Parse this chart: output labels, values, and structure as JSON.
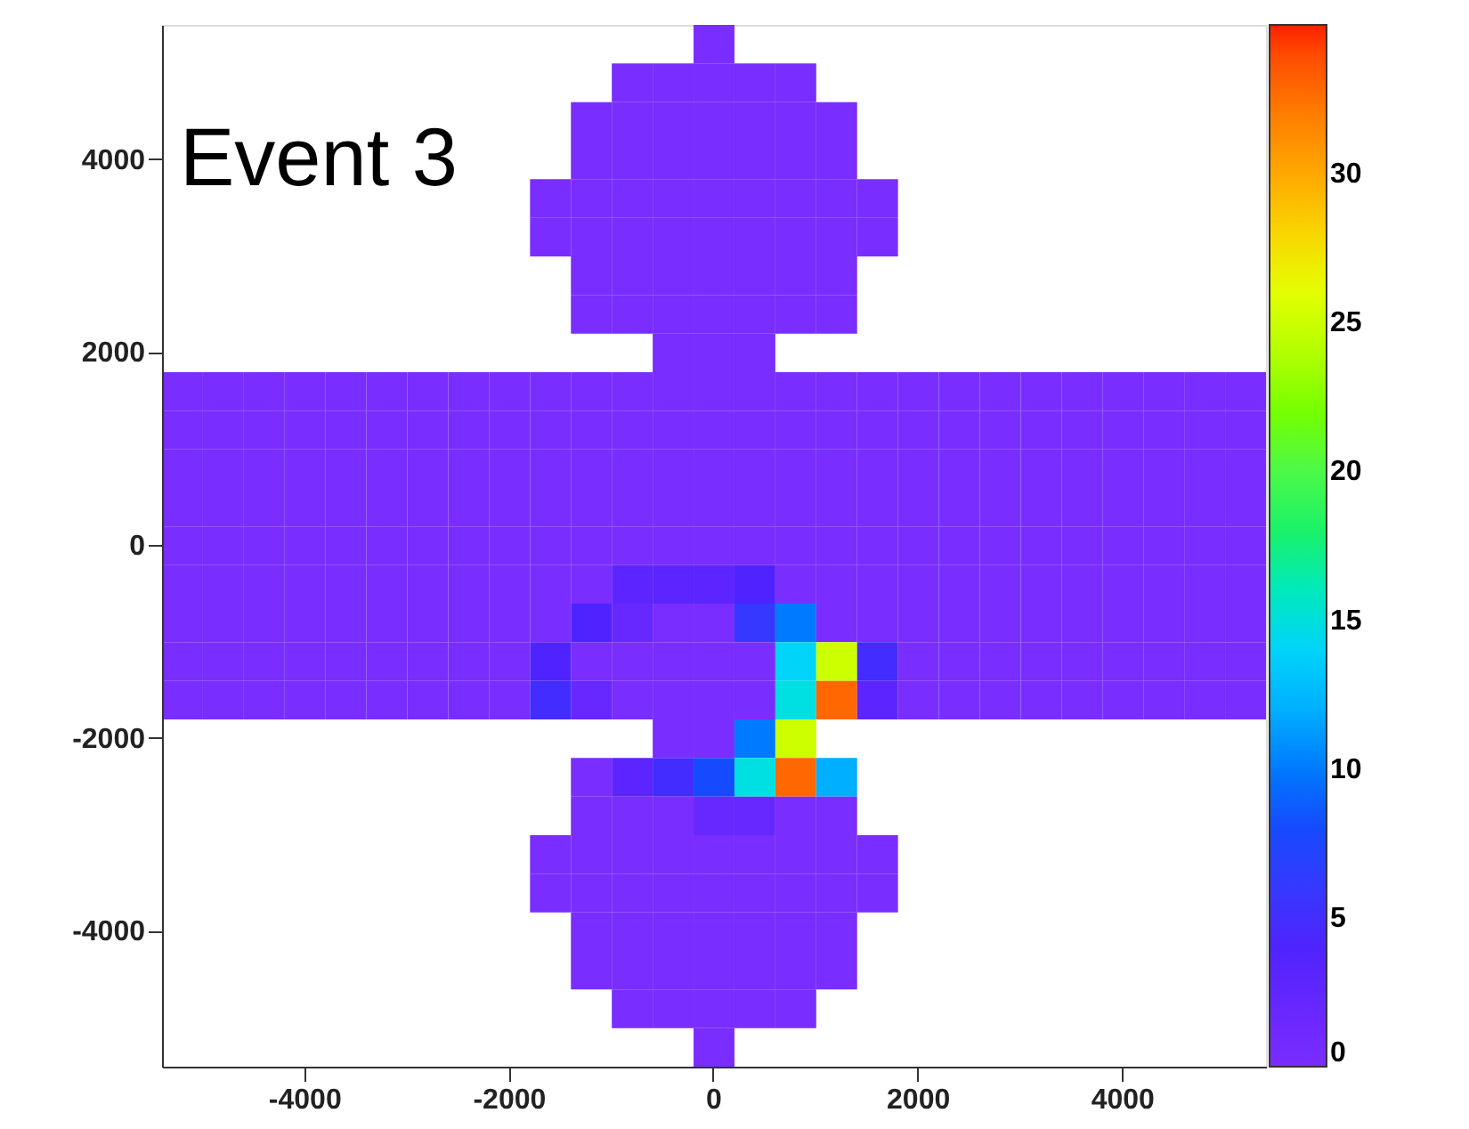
{
  "chart_data": {
    "type": "heatmap",
    "annotations": [
      "Event 3"
    ],
    "categories": [
      null,
      null,
      null,
      "-4000",
      null,
      null,
      null,
      null,
      "-2000",
      null,
      null,
      null,
      null,
      "0",
      null,
      null,
      null,
      null,
      "2000",
      null,
      null,
      null,
      null,
      "4000",
      null,
      null,
      null
    ],
    "y_categories": [
      null,
      null,
      null,
      "4000",
      null,
      null,
      null,
      null,
      "2000",
      null,
      null,
      null,
      null,
      "0",
      null,
      null,
      null,
      null,
      "-2000",
      null,
      null,
      null,
      null,
      "-4000",
      null,
      null,
      null
    ],
    "clim": [
      0,
      35
    ],
    "cticks": [
      0,
      5,
      10,
      15,
      20,
      25,
      30
    ],
    "grid": false,
    "cells": [
      [
        null,
        null,
        null,
        null,
        null,
        null,
        null,
        null,
        null,
        null,
        null,
        null,
        null,
        0,
        null,
        null,
        null,
        null,
        null,
        null,
        null,
        null,
        null,
        null,
        null,
        null,
        null
      ],
      [
        null,
        null,
        null,
        null,
        null,
        null,
        null,
        null,
        null,
        null,
        null,
        0,
        0,
        0,
        0,
        0,
        null,
        null,
        null,
        null,
        null,
        null,
        null,
        null,
        null,
        null,
        null
      ],
      [
        null,
        null,
        null,
        null,
        null,
        null,
        null,
        null,
        null,
        null,
        0,
        0,
        0,
        0,
        0,
        0,
        0,
        null,
        null,
        null,
        null,
        null,
        null,
        null,
        null,
        null,
        null
      ],
      [
        null,
        null,
        null,
        null,
        null,
        null,
        null,
        null,
        null,
        null,
        0,
        0,
        0,
        0,
        0,
        0,
        0,
        null,
        null,
        null,
        null,
        null,
        null,
        null,
        null,
        null,
        null
      ],
      [
        null,
        null,
        null,
        null,
        null,
        null,
        null,
        null,
        null,
        0,
        0,
        0,
        0,
        0,
        0,
        0,
        0,
        0,
        null,
        null,
        null,
        null,
        null,
        null,
        null,
        null,
        null
      ],
      [
        null,
        null,
        null,
        null,
        null,
        null,
        null,
        null,
        null,
        0,
        0,
        0,
        0,
        0,
        0,
        0,
        0,
        0,
        null,
        null,
        null,
        null,
        null,
        null,
        null,
        null,
        null
      ],
      [
        null,
        null,
        null,
        null,
        null,
        null,
        null,
        null,
        null,
        null,
        0,
        0,
        0,
        0,
        0,
        0,
        0,
        null,
        null,
        null,
        null,
        null,
        null,
        null,
        null,
        null,
        null
      ],
      [
        null,
        null,
        null,
        null,
        null,
        null,
        null,
        null,
        null,
        null,
        0,
        0,
        0,
        0,
        0,
        0,
        0,
        null,
        null,
        null,
        null,
        null,
        null,
        null,
        null,
        null,
        null
      ],
      [
        null,
        null,
        null,
        null,
        null,
        null,
        null,
        null,
        null,
        null,
        null,
        null,
        0,
        0,
        0,
        null,
        null,
        null,
        null,
        null,
        null,
        null,
        null,
        null,
        null,
        null,
        null
      ],
      [
        0,
        0,
        0,
        0,
        0,
        0,
        0,
        0,
        0,
        0,
        0,
        0,
        0,
        0,
        0,
        0,
        0,
        0,
        0,
        0,
        0,
        0,
        0,
        0,
        0,
        0,
        0
      ],
      [
        0,
        0,
        0,
        0,
        0,
        0,
        0,
        0,
        0,
        0,
        0,
        0,
        0,
        0,
        0,
        0,
        0,
        0,
        0,
        0,
        0,
        0,
        0,
        0,
        0,
        0,
        0
      ],
      [
        0,
        0,
        0,
        0,
        0,
        0,
        0,
        0,
        0,
        0,
        0,
        0,
        0,
        0,
        0,
        0,
        0,
        0,
        0,
        0,
        0,
        0,
        0,
        0,
        0,
        0,
        0
      ],
      [
        0,
        0,
        0,
        0,
        0,
        0,
        0,
        0,
        0,
        0,
        0,
        0,
        0,
        0,
        0,
        0,
        0,
        0,
        0,
        0,
        0,
        0,
        0,
        0,
        0,
        0,
        0
      ],
      [
        0,
        0,
        0,
        0,
        0,
        0,
        0,
        0,
        0,
        0,
        0,
        0,
        0,
        0,
        0,
        0,
        0,
        0,
        0,
        0,
        0,
        0,
        0,
        0,
        0,
        0,
        0
      ],
      [
        0,
        0,
        0,
        0,
        0,
        0,
        0,
        0,
        0,
        0,
        0,
        3,
        3,
        3,
        4,
        0,
        0,
        0,
        0,
        0,
        0,
        0,
        0,
        0,
        0,
        0,
        0
      ],
      [
        0,
        0,
        0,
        0,
        0,
        0,
        0,
        0,
        0,
        0,
        4,
        2,
        0,
        0,
        6,
        10,
        0,
        0,
        0,
        0,
        0,
        0,
        0,
        0,
        0,
        0,
        0
      ],
      [
        0,
        0,
        0,
        0,
        0,
        0,
        0,
        0,
        0,
        4,
        0,
        0,
        0,
        0,
        0,
        14,
        25,
        5,
        0,
        0,
        0,
        0,
        0,
        0,
        0,
        0,
        0
      ],
      [
        0,
        0,
        0,
        0,
        0,
        0,
        0,
        0,
        0,
        5,
        2,
        0,
        0,
        0,
        0,
        15,
        33,
        3,
        0,
        0,
        0,
        0,
        0,
        0,
        0,
        0,
        0
      ],
      [
        null,
        null,
        null,
        null,
        null,
        null,
        null,
        null,
        null,
        null,
        null,
        null,
        0,
        0,
        10,
        25,
        null,
        null,
        null,
        null,
        null,
        null,
        null,
        null,
        null,
        null,
        null
      ],
      [
        null,
        null,
        null,
        null,
        null,
        null,
        null,
        null,
        null,
        null,
        0,
        3,
        5,
        8,
        15,
        33,
        12,
        null,
        null,
        null,
        null,
        null,
        null,
        null,
        null,
        null,
        null
      ],
      [
        null,
        null,
        null,
        null,
        null,
        null,
        null,
        null,
        null,
        null,
        0,
        0,
        0,
        2,
        2,
        0,
        0,
        null,
        null,
        null,
        null,
        null,
        null,
        null,
        null,
        null,
        null
      ],
      [
        null,
        null,
        null,
        null,
        null,
        null,
        null,
        null,
        null,
        0,
        0,
        0,
        0,
        0,
        0,
        0,
        0,
        0,
        null,
        null,
        null,
        null,
        null,
        null,
        null,
        null,
        null
      ],
      [
        null,
        null,
        null,
        null,
        null,
        null,
        null,
        null,
        null,
        0,
        0,
        0,
        0,
        0,
        0,
        0,
        0,
        0,
        null,
        null,
        null,
        null,
        null,
        null,
        null,
        null,
        null
      ],
      [
        null,
        null,
        null,
        null,
        null,
        null,
        null,
        null,
        null,
        null,
        0,
        0,
        0,
        0,
        0,
        0,
        0,
        null,
        null,
        null,
        null,
        null,
        null,
        null,
        null,
        null,
        null
      ],
      [
        null,
        null,
        null,
        null,
        null,
        null,
        null,
        null,
        null,
        null,
        0,
        0,
        0,
        0,
        0,
        0,
        0,
        null,
        null,
        null,
        null,
        null,
        null,
        null,
        null,
        null,
        null
      ],
      [
        null,
        null,
        null,
        null,
        null,
        null,
        null,
        null,
        null,
        null,
        null,
        0,
        0,
        0,
        0,
        0,
        null,
        null,
        null,
        null,
        null,
        null,
        null,
        null,
        null,
        null,
        null
      ],
      [
        null,
        null,
        null,
        null,
        null,
        null,
        null,
        null,
        null,
        null,
        null,
        null,
        null,
        0,
        null,
        null,
        null,
        null,
        null,
        null,
        null,
        null,
        null,
        null,
        null,
        null,
        null
      ]
    ]
  }
}
